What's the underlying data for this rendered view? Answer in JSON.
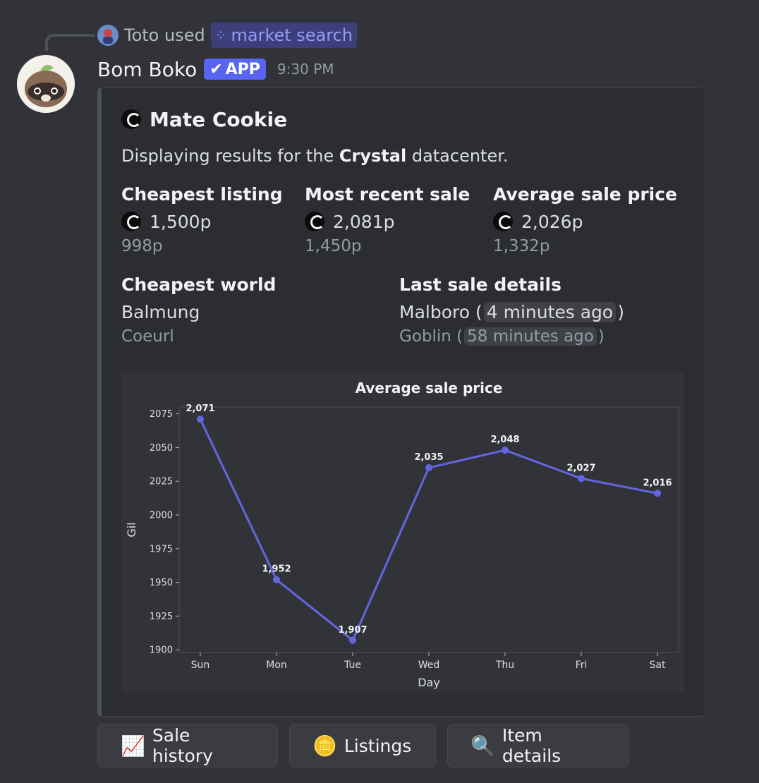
{
  "reply": {
    "user": "Toto",
    "used_text": "used",
    "command": "market search"
  },
  "message": {
    "author": "Bom Boko",
    "badge": "APP",
    "timestamp": "9:30 PM"
  },
  "embed": {
    "title": "Mate Cookie",
    "description_prefix": "Displaying results for the",
    "description_bold": "Crystal",
    "description_suffix": "datacenter.",
    "fields": {
      "cheapest_listing": {
        "name": "Cheapest listing",
        "main": "1,500p",
        "sub": "998p"
      },
      "most_recent_sale": {
        "name": "Most recent sale",
        "main": "2,081p",
        "sub": "1,450p"
      },
      "average_sale_price": {
        "name": "Average sale price",
        "main": "2,026p",
        "sub": "1,332p"
      },
      "cheapest_world": {
        "name": "Cheapest world",
        "main": "Balmung",
        "sub": "Coeurl"
      },
      "last_sale_details": {
        "name": "Last sale details",
        "main_world": "Malboro",
        "main_time": "4 minutes ago",
        "sub_world": "Goblin",
        "sub_time": "58 minutes ago"
      }
    }
  },
  "chart_data": {
    "type": "line",
    "title": "Average sale price",
    "xlabel": "Day",
    "ylabel": "Gil",
    "categories": [
      "Sun",
      "Mon",
      "Tue",
      "Wed",
      "Thu",
      "Fri",
      "Sat"
    ],
    "values": [
      2071,
      1952,
      1907,
      2035,
      2048,
      2027,
      2016
    ],
    "data_labels": [
      "2,071",
      "1,952",
      "1,907",
      "2,035",
      "2,048",
      "2,027",
      "2,016"
    ],
    "yticks": [
      1900,
      1925,
      1950,
      1975,
      2000,
      2025,
      2050,
      2075
    ],
    "ylim": [
      1898,
      2080
    ],
    "grid": false,
    "line_color": "#6366e0"
  },
  "buttons": [
    {
      "label": "Sale history",
      "icon": "chart-up-icon"
    },
    {
      "label": "Listings",
      "icon": "coin-icon"
    },
    {
      "label": "Item details",
      "icon": "magnifier-icon"
    }
  ]
}
